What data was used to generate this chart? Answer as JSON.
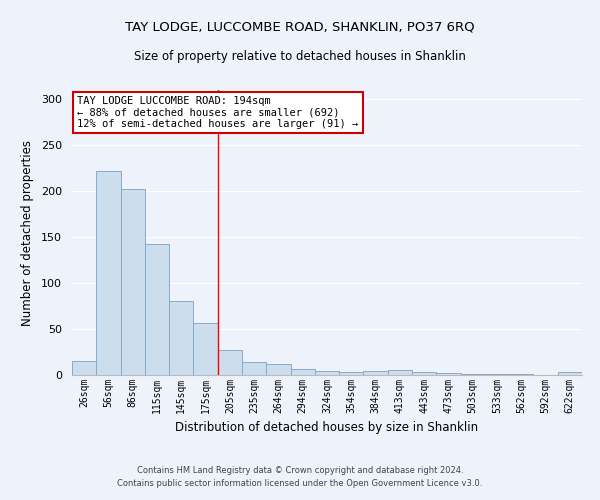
{
  "title": "TAY LODGE, LUCCOMBE ROAD, SHANKLIN, PO37 6RQ",
  "subtitle": "Size of property relative to detached houses in Shanklin",
  "xlabel": "Distribution of detached houses by size in Shanklin",
  "ylabel": "Number of detached properties",
  "categories": [
    "26sqm",
    "56sqm",
    "86sqm",
    "115sqm",
    "145sqm",
    "175sqm",
    "205sqm",
    "235sqm",
    "264sqm",
    "294sqm",
    "324sqm",
    "354sqm",
    "384sqm",
    "413sqm",
    "443sqm",
    "473sqm",
    "503sqm",
    "533sqm",
    "562sqm",
    "592sqm",
    "622sqm"
  ],
  "values": [
    15,
    222,
    202,
    143,
    80,
    57,
    27,
    14,
    12,
    7,
    4,
    3,
    4,
    5,
    3,
    2,
    1,
    1,
    1,
    0,
    3
  ],
  "bar_color": "#ccdded",
  "bar_edge_color": "#88aac8",
  "background_color": "#eef2fb",
  "grid_color": "#ffffff",
  "red_line_x": 5.5,
  "annotation_line1": "TAY LODGE LUCCOMBE ROAD: 194sqm",
  "annotation_line2": "← 88% of detached houses are smaller (692)",
  "annotation_line3": "12% of semi-detached houses are larger (91) →",
  "annotation_box_color": "#ffffff",
  "annotation_box_edge": "#cc0000",
  "footer_line1": "Contains HM Land Registry data © Crown copyright and database right 2024.",
  "footer_line2": "Contains public sector information licensed under the Open Government Licence v3.0.",
  "ylim": [
    0,
    310
  ],
  "yticks": [
    0,
    50,
    100,
    150,
    200,
    250,
    300
  ]
}
